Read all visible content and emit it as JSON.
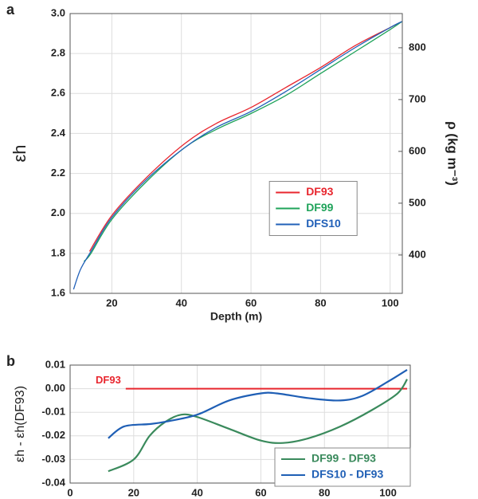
{
  "chart_data": [
    {
      "type": "line",
      "panel": "a",
      "xlabel": "Depth (m)",
      "ylabel": "εh",
      "y2label": "ρ (kg m⁻³)",
      "xlim": [
        8,
        103.5
      ],
      "xticks": [
        20,
        40,
        60,
        80,
        100
      ],
      "ylim": [
        1.6,
        3.0
      ],
      "yticks": [
        {
          "value": 1.6,
          "label": "1.6"
        },
        {
          "value": 1.8,
          "label": "1.8"
        },
        {
          "value": 2.0,
          "label": "2.0"
        },
        {
          "value": 2.2,
          "label": "2.2"
        },
        {
          "value": 2.4,
          "label": "2.4"
        },
        {
          "value": 2.6,
          "label": "2.6"
        },
        {
          "value": 2.8,
          "label": "2.8"
        },
        {
          "value": 3.0,
          "label": "3.0"
        }
      ],
      "y2lim": [
        326,
        866
      ],
      "y2ticks": [
        400,
        500,
        600,
        700,
        800
      ],
      "grid": true,
      "legend": "center",
      "series": [
        {
          "name": "DF93",
          "color": "#e8262e",
          "x": [
            13.6,
            20,
            30,
            41,
            50,
            60,
            70,
            80,
            90,
            100,
            103.4
          ],
          "values": [
            1.81,
            1.99,
            2.18,
            2.35,
            2.45,
            2.53,
            2.63,
            2.73,
            2.84,
            2.93,
            2.96
          ]
        },
        {
          "name": "DF99",
          "color": "#1fa35a",
          "x": [
            12,
            14,
            20,
            30,
            41,
            50,
            60,
            70,
            80,
            90,
            100,
            103.4
          ],
          "values": [
            1.76,
            1.8,
            1.97,
            2.16,
            2.33,
            2.42,
            2.5,
            2.59,
            2.7,
            2.81,
            2.92,
            2.96
          ]
        },
        {
          "name": "DFS10",
          "color": "#2160b8",
          "x": [
            9,
            11,
            14,
            20,
            30,
            41,
            50,
            60,
            70,
            80,
            90,
            100,
            103.4
          ],
          "values": [
            1.62,
            1.72,
            1.81,
            1.98,
            2.17,
            2.33,
            2.43,
            2.51,
            2.61,
            2.72,
            2.83,
            2.93,
            2.96
          ]
        }
      ]
    },
    {
      "type": "line",
      "panel": "b",
      "xlabel": "Depth (m)",
      "ylabel": "εh - εh(DF93)",
      "xlim": [
        0,
        107
      ],
      "xticks": [
        0,
        20,
        40,
        60,
        80,
        100
      ],
      "ylim": [
        -0.04,
        0.01
      ],
      "yticks": [
        {
          "value": -0.04,
          "label": "-0.04"
        },
        {
          "value": -0.03,
          "label": "-0.03"
        },
        {
          "value": -0.02,
          "label": "-0.02"
        },
        {
          "value": -0.01,
          "label": "-0.01"
        },
        {
          "value": 0,
          "label": "0.00"
        },
        {
          "value": 0.01,
          "label": "0.01"
        }
      ],
      "grid": true,
      "legend": "lower right",
      "reference_line": {
        "label": "DF93",
        "value": 0,
        "x": [
          17.5,
          106
        ],
        "color": "#e8262e"
      },
      "series": [
        {
          "name": "DF99 - DF93",
          "color": "#3a8a5c",
          "x": [
            12,
            20,
            25,
            30,
            35,
            40,
            50,
            60,
            67,
            75,
            85,
            95,
            103,
            106
          ],
          "values": [
            -0.035,
            -0.03,
            -0.02,
            -0.014,
            -0.011,
            -0.012,
            -0.017,
            -0.022,
            -0.023,
            -0.021,
            -0.016,
            -0.009,
            -0.002,
            0.004
          ]
        },
        {
          "name": "DFS10 - DF93",
          "color": "#1f5fb5",
          "x": [
            12,
            17,
            25,
            30,
            40,
            50,
            60,
            65,
            75,
            85,
            92,
            100,
            106
          ],
          "values": [
            -0.021,
            -0.016,
            -0.015,
            -0.014,
            -0.011,
            -0.005,
            -0.002,
            -0.002,
            -0.004,
            -0.005,
            -0.003,
            0.003,
            0.008
          ]
        }
      ]
    }
  ]
}
